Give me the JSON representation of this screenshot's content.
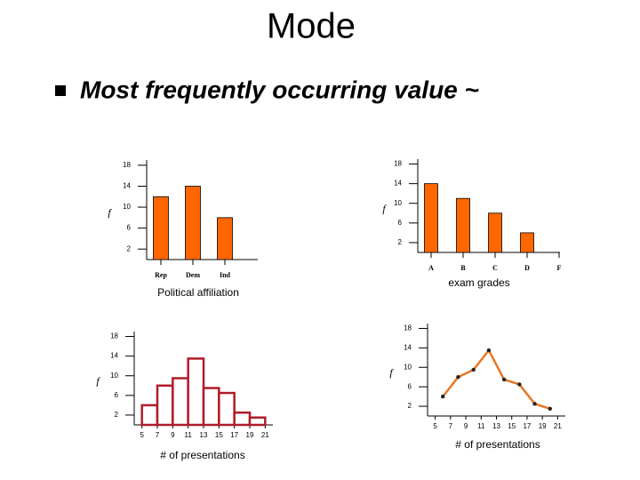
{
  "slide": {
    "title": "Mode",
    "bullet": "Most frequently occurring value ~"
  },
  "chart_data": [
    {
      "type": "bar",
      "ylabel": "f",
      "xlabel": "Political affiliation",
      "categories": [
        "Rep",
        "Dem",
        "Ind"
      ],
      "values": [
        12,
        14,
        8
      ],
      "color": "#ff6600",
      "ylim": [
        0,
        19
      ],
      "yticks": [
        2,
        6,
        10,
        14,
        18
      ]
    },
    {
      "type": "bar",
      "ylabel": "f",
      "xlabel": "exam grades",
      "categories": [
        "A",
        "B",
        "C",
        "D",
        "F"
      ],
      "values": [
        14,
        11,
        8,
        4,
        0
      ],
      "color": "#ff6600",
      "ylim": [
        0,
        19
      ],
      "yticks": [
        2,
        6,
        10,
        14,
        18
      ]
    },
    {
      "type": "histogram",
      "ylabel": "f",
      "xlabel": "# of presentations",
      "bins": [
        5,
        7,
        9,
        11,
        13,
        15,
        17,
        19,
        21
      ],
      "values": [
        4,
        8,
        9.5,
        13.5,
        7.5,
        6.5,
        2.5,
        1.5
      ],
      "color": "#b01c2a",
      "xlim": [
        4,
        22
      ],
      "xticks": [
        5,
        7,
        9,
        11,
        13,
        15,
        17,
        19,
        21
      ],
      "ylim": [
        0,
        19
      ],
      "yticks": [
        2,
        6,
        10,
        14,
        18
      ]
    },
    {
      "type": "line",
      "ylabel": "f",
      "xlabel": "# of presentations",
      "x": [
        6,
        8,
        10,
        12,
        14,
        16,
        18,
        20
      ],
      "values": [
        4,
        8,
        9.5,
        13.5,
        7.5,
        6.5,
        2.5,
        1.5
      ],
      "color": "#e87722",
      "marker_color": "#222222",
      "xlim": [
        4,
        22
      ],
      "xticks": [
        5,
        7,
        9,
        11,
        13,
        15,
        17,
        19,
        21
      ],
      "ylim": [
        0,
        19
      ],
      "yticks": [
        2,
        6,
        10,
        14,
        18
      ]
    }
  ]
}
